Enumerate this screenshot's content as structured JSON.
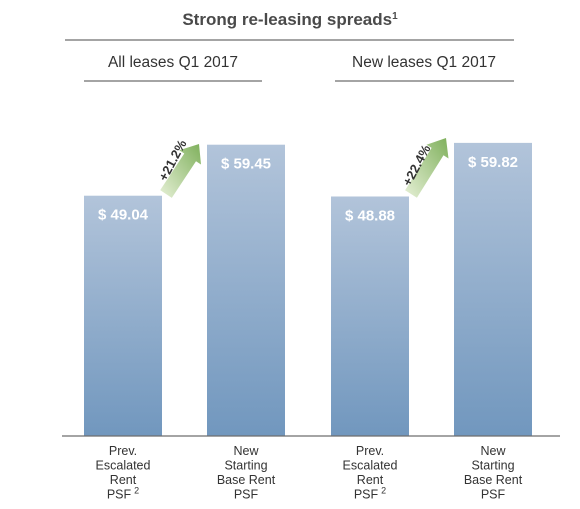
{
  "title": "Strong re-leasing spreads",
  "title_footnote": "1",
  "colors": {
    "bar_top": "#b2c4da",
    "bar_bottom": "#7197be",
    "arrow_light": "#e6f0d6",
    "arrow_dark": "#7fb05c",
    "rule": "#6e6e6e"
  },
  "chart_data": [
    {
      "type": "bar",
      "title": "All leases Q1 2017",
      "categories": [
        "Prev. Escalated Rent PSF",
        "New Starting Base Rent PSF"
      ],
      "category_lines": [
        [
          "Prev.",
          "Escalated",
          "Rent",
          "PSF"
        ],
        [
          "New",
          "Starting",
          "Base Rent",
          "PSF"
        ]
      ],
      "category_footnotes": [
        "2",
        ""
      ],
      "values": [
        49.04,
        59.45
      ],
      "value_labels": [
        "$ 49.04",
        "$ 59.45"
      ],
      "growth_label": "+21.2%"
    },
    {
      "type": "bar",
      "title": "New leases Q1 2017",
      "categories": [
        "Prev. Escalated Rent PSF",
        "New Starting Base Rent PSF"
      ],
      "category_lines": [
        [
          "Prev.",
          "Escalated",
          "Rent",
          "PSF"
        ],
        [
          "New",
          "Starting",
          "Base Rent",
          "PSF"
        ]
      ],
      "category_footnotes": [
        "2",
        ""
      ],
      "values": [
        48.88,
        59.82
      ],
      "value_labels": [
        "$ 48.88",
        "$ 59.82"
      ],
      "growth_label": "+22.4%"
    }
  ]
}
